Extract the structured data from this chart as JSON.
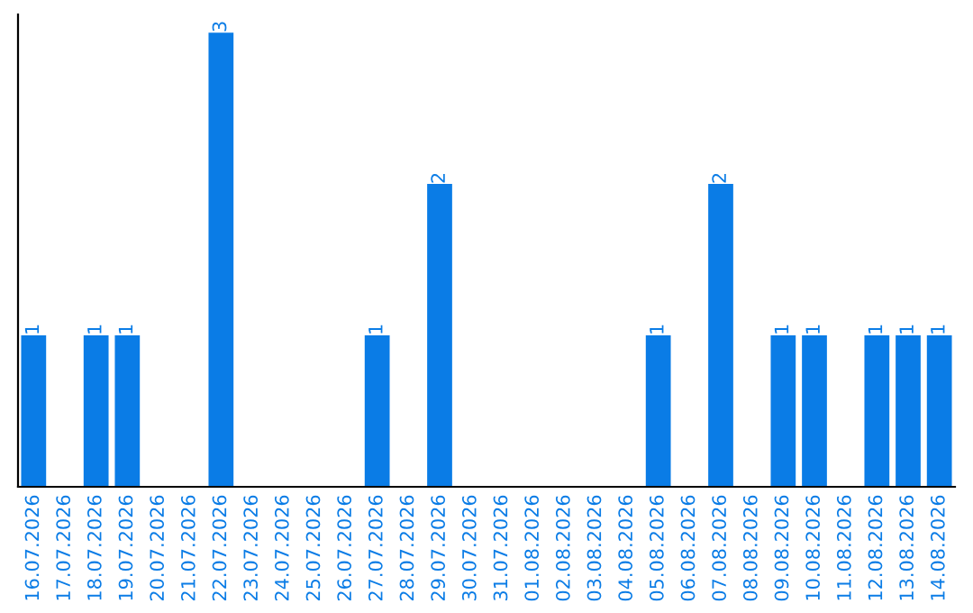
{
  "chart_data": {
    "type": "bar",
    "categories": [
      "16.07.2026",
      "17.07.2026",
      "18.07.2026",
      "19.07.2026",
      "20.07.2026",
      "21.07.2026",
      "22.07.2026",
      "23.07.2026",
      "24.07.2026",
      "25.07.2026",
      "26.07.2026",
      "27.07.2026",
      "28.07.2026",
      "29.07.2026",
      "30.07.2026",
      "31.07.2026",
      "01.08.2026",
      "02.08.2026",
      "03.08.2026",
      "04.08.2026",
      "05.08.2026",
      "06.08.2026",
      "07.08.2026",
      "08.08.2026",
      "09.08.2026",
      "10.08.2026",
      "11.08.2026",
      "12.08.2026",
      "13.08.2026",
      "14.08.2026"
    ],
    "values": [
      1,
      0,
      1,
      1,
      0,
      0,
      3,
      0,
      0,
      0,
      0,
      1,
      0,
      2,
      0,
      0,
      0,
      0,
      0,
      0,
      1,
      0,
      2,
      0,
      1,
      1,
      0,
      1,
      1,
      1
    ],
    "value_labels": [
      "1",
      null,
      "1",
      "1",
      null,
      null,
      "3",
      null,
      null,
      null,
      null,
      "1",
      null,
      "2",
      null,
      null,
      null,
      null,
      null,
      null,
      "1",
      null,
      "2",
      null,
      "1",
      "1",
      null,
      "1",
      "1",
      "1"
    ],
    "color": "#0a7ce6",
    "tick_labels": "x",
    "grid": false,
    "legend": false
  }
}
